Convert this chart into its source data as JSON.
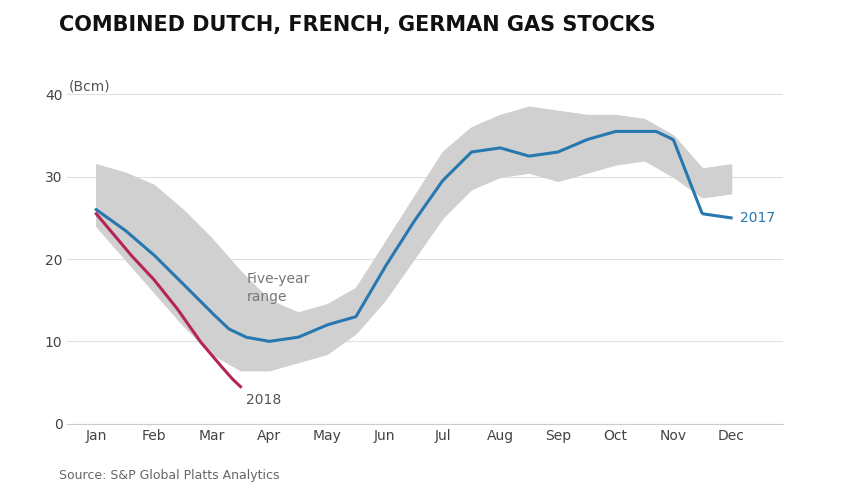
{
  "title": "COMBINED DUTCH, FRENCH, GERMAN GAS STOCKS",
  "ylabel": "(Bcm)",
  "source": "Source: S&P Global Platts Analytics",
  "ylim": [
    0,
    42
  ],
  "yticks": [
    0,
    10,
    20,
    30,
    40
  ],
  "months": [
    "Jan",
    "Feb",
    "Mar",
    "Apr",
    "May",
    "Jun",
    "Jul",
    "Aug",
    "Sep",
    "Oct",
    "Nov",
    "Dec"
  ],
  "background_color": "#ffffff",
  "five_year_range_color": "#d0d0d0",
  "line_2017_color": "#2878b0",
  "line_2018_color": "#b5245a",
  "label_2017": "2017",
  "label_2018": "2018",
  "five_year_label": "Five-year\nrange",
  "line_2017_x": [
    0,
    0.5,
    1.0,
    1.5,
    2.0,
    2.3,
    2.6,
    3.0,
    3.5,
    4.0,
    4.5,
    5.0,
    5.5,
    6.0,
    6.5,
    7.0,
    7.5,
    8.0,
    8.5,
    9.0,
    9.5,
    9.7,
    10.0,
    10.5,
    11.0
  ],
  "line_2017_y": [
    26.0,
    23.5,
    20.5,
    17.0,
    13.5,
    11.5,
    10.5,
    10.0,
    10.5,
    12.0,
    13.0,
    19.0,
    24.5,
    29.5,
    33.0,
    33.5,
    32.5,
    33.0,
    34.5,
    35.5,
    35.5,
    35.5,
    34.5,
    25.5,
    25.0
  ],
  "line_2018_x": [
    0,
    0.3,
    0.6,
    1.0,
    1.4,
    1.8,
    2.1,
    2.35,
    2.5
  ],
  "line_2018_y": [
    25.5,
    23.0,
    20.5,
    17.5,
    14.0,
    10.0,
    7.5,
    5.5,
    4.5
  ],
  "five_year_upper_x": [
    0,
    0.5,
    1.0,
    1.5,
    2.0,
    2.5,
    3.0,
    3.5,
    4.0,
    4.5,
    5.0,
    5.5,
    6.0,
    6.5,
    7.0,
    7.5,
    8.0,
    8.5,
    9.0,
    9.5,
    10.0,
    10.5,
    11.0
  ],
  "five_year_upper_y": [
    31.5,
    30.5,
    29.0,
    26.0,
    22.5,
    18.5,
    15.0,
    13.5,
    14.5,
    16.5,
    22.0,
    27.5,
    33.0,
    36.0,
    37.5,
    38.5,
    38.0,
    37.5,
    37.5,
    37.0,
    35.0,
    31.0,
    31.5
  ],
  "five_year_lower_x": [
    0,
    0.5,
    1.0,
    1.5,
    2.0,
    2.5,
    3.0,
    3.5,
    4.0,
    4.5,
    5.0,
    5.5,
    6.0,
    6.5,
    7.0,
    7.5,
    8.0,
    8.5,
    9.0,
    9.5,
    10.0,
    10.5,
    11.0
  ],
  "five_year_lower_y": [
    24.0,
    20.0,
    16.0,
    12.0,
    8.5,
    6.5,
    6.5,
    7.5,
    8.5,
    11.0,
    15.0,
    20.0,
    25.0,
    28.5,
    30.0,
    30.5,
    29.5,
    30.5,
    31.5,
    32.0,
    30.0,
    27.5,
    28.0
  ],
  "title_fontsize": 15,
  "label_fontsize": 10,
  "tick_fontsize": 10,
  "source_fontsize": 9
}
